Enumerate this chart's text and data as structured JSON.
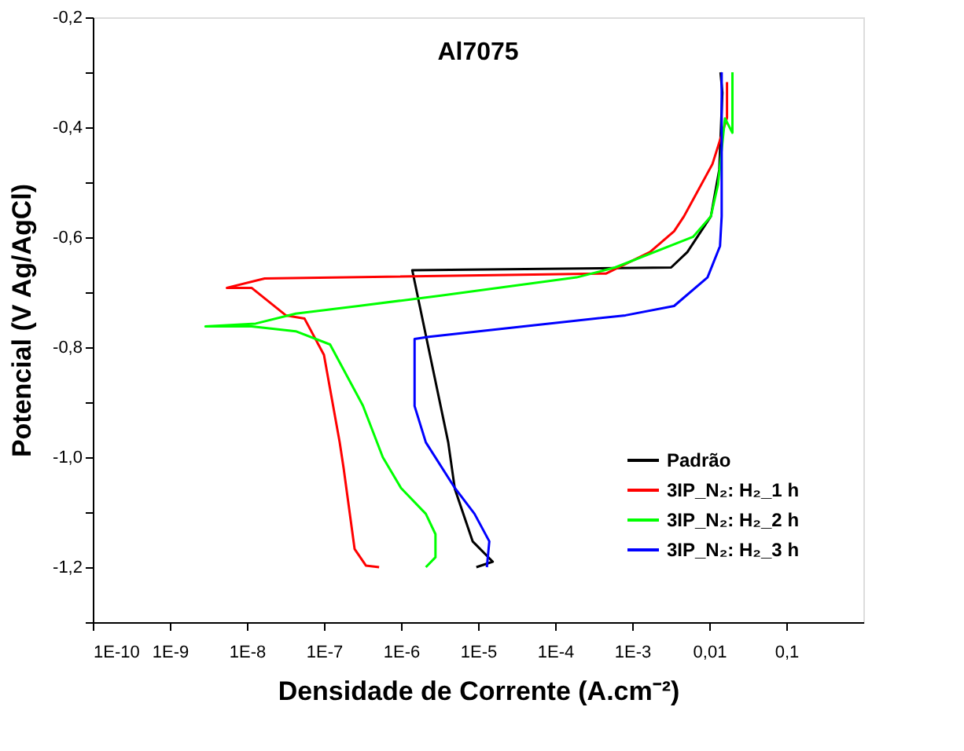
{
  "chart_data": {
    "type": "line",
    "title": "Al7075",
    "xlabel": "Densidade de Corrente (A.cm⁻²)",
    "ylabel": "Potencial (V Ag/AgCl)",
    "log": "x",
    "grid": false,
    "legend": "bottom right",
    "line_style": "solid",
    "marker": "none",
    "xlim": [
      1e-10,
      1
    ],
    "ylim": [
      -1.3,
      -0.2
    ],
    "xticks": [
      {
        "value": 1e-10,
        "label": "1E-10"
      },
      {
        "value": 1e-09,
        "label": "1E-9"
      },
      {
        "value": 1e-08,
        "label": "1E-8"
      },
      {
        "value": 1e-07,
        "label": "1E-7"
      },
      {
        "value": 1e-06,
        "label": "1E-6"
      },
      {
        "value": 1e-05,
        "label": "1E-5"
      },
      {
        "value": 0.0001,
        "label": "1E-4"
      },
      {
        "value": 0.001,
        "label": "1E-3"
      },
      {
        "value": 0.01,
        "label": "0,01"
      },
      {
        "value": 0.1,
        "label": "0,1"
      }
    ],
    "yticks": [
      {
        "value": -1.3,
        "label": null
      },
      {
        "value": -1.2,
        "label": "-1,2"
      },
      {
        "value": -1.1,
        "label": null
      },
      {
        "value": -1.0,
        "label": "-1,0"
      },
      {
        "value": -0.9,
        "label": null
      },
      {
        "value": -0.8,
        "label": "-0,8"
      },
      {
        "value": -0.7,
        "label": null
      },
      {
        "value": -0.6,
        "label": "-0,6"
      },
      {
        "value": -0.5,
        "label": null
      },
      {
        "value": -0.4,
        "label": "-0,4"
      },
      {
        "value": -0.3,
        "label": null
      },
      {
        "value": -0.2,
        "label": "-0,2"
      }
    ],
    "series": [
      {
        "name": "Padrão",
        "color": "#000000",
        "x": [
          9.5e-06,
          1.55e-05,
          8.5e-06,
          5e-06,
          4.1e-06,
          1.4e-06,
          0.0032,
          0.0052,
          0.0105,
          0.0135,
          0.0148,
          0.014
        ],
        "values": [
          -1.2,
          -1.19,
          -1.153,
          -1.058,
          -0.973,
          -0.66,
          -0.655,
          -0.627,
          -0.562,
          -0.477,
          -0.337,
          -0.3
        ]
      },
      {
        "name": "3IP_N₂: H₂_1 h",
        "color": "#ff0000",
        "x": [
          5.2e-07,
          3.5e-07,
          2.5e-07,
          1.8e-07,
          1.6e-07,
          1e-07,
          5.6e-08,
          3.2e-08,
          1.15e-08,
          5.5e-09,
          1.7e-08,
          0.00046,
          0.0017,
          0.0035,
          0.0047,
          0.011,
          0.017,
          0.017
        ],
        "values": [
          -1.2,
          -1.197,
          -1.167,
          -1.02,
          -0.973,
          -0.814,
          -0.748,
          -0.742,
          -0.692,
          -0.692,
          -0.675,
          -0.666,
          -0.627,
          -0.589,
          -0.562,
          -0.467,
          -0.383,
          -0.318
        ]
      },
      {
        "name": "3IP_N₂: H₂_2 h",
        "color": "#00ff00",
        "x": [
          2.1e-06,
          2.8e-06,
          2.8e-06,
          2.1e-06,
          1e-06,
          5.8e-07,
          3.2e-07,
          1.2e-07,
          4.3e-08,
          1.15e-08,
          2.9e-09,
          1.3e-08,
          4.3e-08,
          2.8e-07,
          3.3e-06,
          0.00019,
          0.0006,
          0.0062,
          0.0105,
          0.013,
          0.016,
          0.02,
          0.02
        ],
        "values": [
          -1.2,
          -1.182,
          -1.14,
          -1.103,
          -1.056,
          -1.0,
          -0.906,
          -0.795,
          -0.771,
          -0.762,
          -0.762,
          -0.757,
          -0.739,
          -0.725,
          -0.706,
          -0.673,
          -0.655,
          -0.599,
          -0.562,
          -0.504,
          -0.384,
          -0.41,
          -0.3
        ]
      },
      {
        "name": "3IP_N₂: H₂_3 h",
        "color": "#0000ff",
        "x": [
          1.3e-05,
          1.4e-05,
          9e-06,
          5e-06,
          2.1e-06,
          1.5e-06,
          1.5e-06,
          2.3e-06,
          3.9e-05,
          0.00082,
          0.0035,
          0.0095,
          0.0138,
          0.0145,
          0.0145
        ],
        "values": [
          -1.2,
          -1.153,
          -1.103,
          -1.056,
          -0.973,
          -0.907,
          -0.785,
          -0.781,
          -0.762,
          -0.742,
          -0.725,
          -0.673,
          -0.616,
          -0.562,
          -0.3
        ]
      }
    ]
  }
}
